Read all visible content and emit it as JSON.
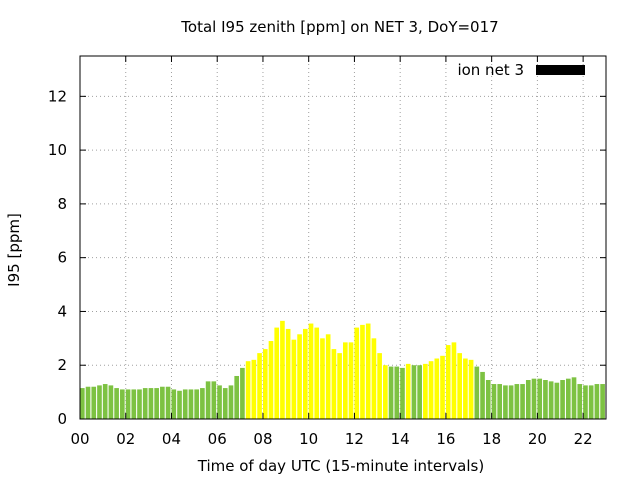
{
  "chart_data": {
    "type": "bar",
    "title": "Total I95 zenith [ppm] on NET 3, DoY=017",
    "xlabel": "Time of day UTC (15-minute intervals)",
    "ylabel": "I95 [ppm]",
    "x_unit": "hours UTC",
    "x_step_hours": 0.25,
    "xlim": [
      0,
      23
    ],
    "ylim": [
      0,
      13.5
    ],
    "x_ticks": [
      0,
      2,
      4,
      6,
      8,
      10,
      12,
      14,
      16,
      18,
      20,
      22
    ],
    "x_tick_labels": [
      "00",
      "02",
      "04",
      "06",
      "08",
      "10",
      "12",
      "14",
      "16",
      "18",
      "20",
      "22"
    ],
    "y_ticks": [
      0,
      2,
      4,
      6,
      8,
      10,
      12
    ],
    "y_tick_labels": [
      "0",
      "2",
      "4",
      "6",
      "8",
      "10",
      "12"
    ],
    "grid": true,
    "legend": {
      "label": "ion net 3",
      "placement": "top-right",
      "swatch_color": "#000000"
    },
    "colors": {
      "green": "#7dc242",
      "yellow": "#ffff00"
    },
    "series": [
      {
        "x": [
          0,
          0.25,
          0.5,
          0.75,
          1,
          1.25,
          1.5,
          1.75,
          2,
          2.25,
          2.5,
          2.75,
          3,
          3.25,
          3.5,
          3.75,
          4,
          4.25,
          4.5,
          4.75,
          5,
          5.25,
          5.5,
          5.75,
          6,
          6.25,
          6.5,
          6.75,
          7,
          7.25,
          7.5,
          7.75,
          8,
          8.25,
          8.5,
          8.75,
          9,
          9.25,
          9.5,
          9.75,
          10,
          10.25,
          10.5,
          10.75,
          11,
          11.25,
          11.5,
          11.75,
          12,
          12.25,
          12.5,
          12.75,
          13,
          13.25,
          13.5,
          13.75,
          14,
          14.25,
          14.5,
          14.75,
          15,
          15.25,
          15.5,
          15.75,
          16,
          16.25,
          16.5,
          16.75,
          17,
          17.25,
          17.5,
          17.75,
          18,
          18.25,
          18.5,
          18.75,
          19,
          19.25,
          19.5,
          19.75,
          20,
          20.25,
          20.5,
          20.75,
          21,
          21.25,
          21.5,
          21.75,
          22,
          22.25,
          22.5,
          22.75
        ],
        "values": [
          1.15,
          1.2,
          1.2,
          1.25,
          1.3,
          1.25,
          1.15,
          1.1,
          1.1,
          1.1,
          1.1,
          1.15,
          1.15,
          1.15,
          1.2,
          1.2,
          1.1,
          1.05,
          1.1,
          1.1,
          1.1,
          1.15,
          1.4,
          1.4,
          1.25,
          1.15,
          1.25,
          1.6,
          1.9,
          2.15,
          2.2,
          2.45,
          2.6,
          2.9,
          3.4,
          3.65,
          3.35,
          2.95,
          3.15,
          3.35,
          3.55,
          3.4,
          3.0,
          3.15,
          2.6,
          2.45,
          2.85,
          2.85,
          3.4,
          3.5,
          3.55,
          3.0,
          2.45,
          2.0,
          1.95,
          1.95,
          1.9,
          2.05,
          2.0,
          2.0,
          2.05,
          2.15,
          2.25,
          2.35,
          2.75,
          2.85,
          2.45,
          2.25,
          2.2,
          1.95,
          1.75,
          1.45,
          1.3,
          1.3,
          1.25,
          1.25,
          1.3,
          1.3,
          1.45,
          1.5,
          1.5,
          1.45,
          1.4,
          1.35,
          1.45,
          1.5,
          1.55,
          1.3,
          1.25,
          1.25,
          1.3,
          1.3
        ],
        "colors": [
          "green",
          "green",
          "green",
          "green",
          "green",
          "green",
          "green",
          "green",
          "green",
          "green",
          "green",
          "green",
          "green",
          "green",
          "green",
          "green",
          "green",
          "green",
          "green",
          "green",
          "green",
          "green",
          "green",
          "green",
          "green",
          "green",
          "green",
          "green",
          "green",
          "yellow",
          "yellow",
          "yellow",
          "yellow",
          "yellow",
          "yellow",
          "yellow",
          "yellow",
          "yellow",
          "yellow",
          "yellow",
          "yellow",
          "yellow",
          "yellow",
          "yellow",
          "yellow",
          "yellow",
          "yellow",
          "yellow",
          "yellow",
          "yellow",
          "yellow",
          "yellow",
          "yellow",
          "yellow",
          "green",
          "green",
          "green",
          "yellow",
          "green",
          "green",
          "yellow",
          "yellow",
          "yellow",
          "yellow",
          "yellow",
          "yellow",
          "yellow",
          "yellow",
          "yellow",
          "green",
          "green",
          "green",
          "green",
          "green",
          "green",
          "green",
          "green",
          "green",
          "green",
          "green",
          "green",
          "green",
          "green",
          "green",
          "green",
          "green",
          "green",
          "green",
          "green",
          "green",
          "green",
          "green"
        ]
      }
    ]
  }
}
